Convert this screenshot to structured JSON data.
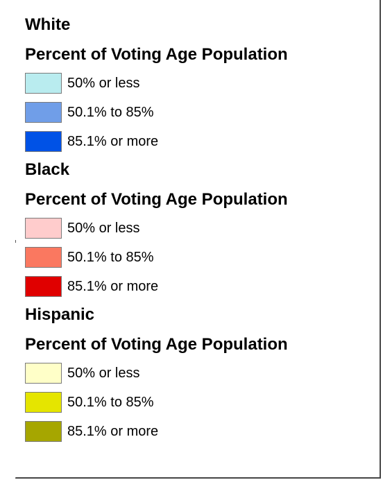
{
  "legend": {
    "groups": [
      {
        "title": "White",
        "subtitle": "Percent of Voting Age Population",
        "items": [
          {
            "label": "50% or less",
            "color": "#b9ecef"
          },
          {
            "label": "50.1% to 85%",
            "color": "#709ee8"
          },
          {
            "label": "85.1% or more",
            "color": "#0052e6"
          }
        ]
      },
      {
        "title": "Black",
        "subtitle": "Percent of Voting Age Population",
        "items": [
          {
            "label": "50% or less",
            "color": "#ffcccc"
          },
          {
            "label": "50.1% to 85%",
            "color": "#fa7860"
          },
          {
            "label": "85.1% or more",
            "color": "#e00000"
          }
        ]
      },
      {
        "title": "Hispanic",
        "subtitle": "Percent of Voting Age Population",
        "items": [
          {
            "label": "50% or less",
            "color": "#ffffc8"
          },
          {
            "label": "50.1% to 85%",
            "color": "#e5e500"
          },
          {
            "label": "85.1% or more",
            "color": "#a6a600"
          }
        ]
      }
    ]
  }
}
